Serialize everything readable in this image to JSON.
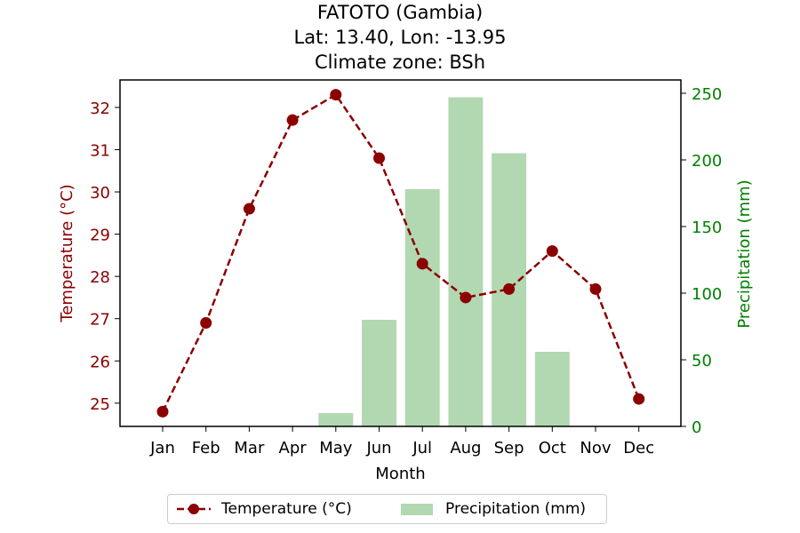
{
  "chart_data": {
    "type": "bar+line",
    "title_lines": [
      "FATOTO (Gambia)",
      "Lat: 13.40, Lon: -13.95",
      "Climate zone: BSh"
    ],
    "categories": [
      "Jan",
      "Feb",
      "Mar",
      "Apr",
      "May",
      "Jun",
      "Jul",
      "Aug",
      "Sep",
      "Oct",
      "Nov",
      "Dec"
    ],
    "xlabel": "Month",
    "series": [
      {
        "name": "Temperature (°C)",
        "type": "line",
        "axis": "left",
        "color": "#8b0000",
        "style": "dashed",
        "marker": "circle",
        "values": [
          24.8,
          26.9,
          29.6,
          31.7,
          32.3,
          30.8,
          28.3,
          27.5,
          27.7,
          28.6,
          27.7,
          25.1
        ]
      },
      {
        "name": "Precipitation (mm)",
        "type": "bar",
        "axis": "right",
        "color": "#b2d8b2",
        "values": [
          0,
          0,
          0,
          0,
          10,
          80,
          178,
          247,
          205,
          56,
          0,
          0
        ]
      }
    ],
    "y_left": {
      "label": "Temperature (°C)",
      "color": "#8b0000",
      "lim": [
        24.45,
        32.65
      ],
      "ticks": [
        25,
        26,
        27,
        28,
        29,
        30,
        31,
        32
      ]
    },
    "y_right": {
      "label": "Precipitation (mm)",
      "color": "#008000",
      "lim": [
        0,
        260
      ],
      "ticks": [
        0,
        50,
        100,
        150,
        200,
        250
      ]
    },
    "grid": false,
    "legend_position": "bottom-center"
  }
}
